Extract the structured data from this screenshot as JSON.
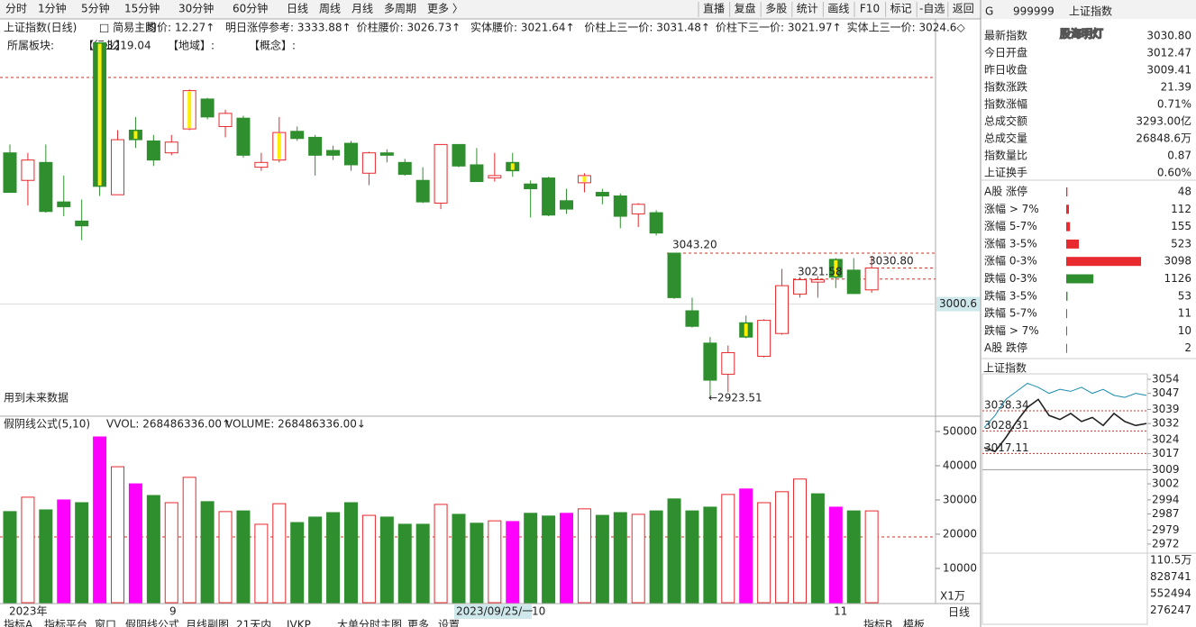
{
  "toolbar": {
    "tabs": [
      "分时",
      "1分钟",
      "5分钟",
      "15分钟",
      "30分钟",
      "60分钟",
      "日线",
      "周线",
      "月线",
      "多周期",
      "更多 〉"
    ],
    "active": 6,
    "buttons": [
      "直播",
      "复盘",
      "多股",
      "统计",
      "画线",
      "F10",
      "标记",
      "-自选",
      "返回"
    ]
  },
  "main": {
    "title": "上证指数(日线)",
    "mode": "□ 简易主图",
    "info": [
      "均价: 12.27↑",
      "明日涨停参考: 3333.88↑",
      "价柱腰价: 3026.73↑",
      "实体腰价: 3021.64↑",
      "价柱上三一价: 3031.48↑",
      "价柱下三一价: 3021.97↑",
      "实体上三一价: 3024.6◇"
    ],
    "sector": [
      "所属板块:",
      "【行业】",
      "3219.04",
      "【地域】:",
      "【概念】:"
    ],
    "note": "用到未来数据",
    "annotations": {
      "high_label": "3043.20",
      "low_label": "←2923.51",
      "mid_label": "3021.58",
      "close_label": "3030.80"
    }
  },
  "kline": {
    "up_color": "#e8292e",
    "down_color": "#2f8f2f",
    "highlight_color": "#ffee00",
    "ylim": [
      2906.9,
      3238.2
    ],
    "current_axis": 3000.6,
    "levels": [
      3190,
      3043.2,
      3030.8,
      3021.5
    ],
    "highlight": [
      5,
      7,
      10,
      15,
      28,
      32,
      41,
      46
    ],
    "open": [
      3127,
      3104,
      3119,
      3086,
      3070,
      3219,
      3092,
      3146,
      3137,
      3127,
      3147,
      3172,
      3149,
      3156,
      3115,
      3121,
      3145,
      3140,
      3129,
      3135,
      3110,
      3127,
      3119,
      3104,
      3085,
      3134,
      3117,
      3106,
      3119,
      3101,
      3106,
      3087,
      3102,
      3094,
      3091,
      3076,
      3077,
      3043.2,
      2995,
      2968,
      2942,
      2985,
      2957,
      2976,
      3009,
      3019,
      3038,
      3029,
      3012.47
    ],
    "high": [
      3134,
      3127,
      3134,
      3108,
      3088,
      3219.04,
      3146,
      3157,
      3142,
      3142,
      3180,
      3173,
      3163,
      3158,
      3127,
      3157,
      3149,
      3142,
      3133,
      3137,
      3128,
      3130,
      3122,
      3115,
      3134,
      3134,
      3131,
      3127,
      3127,
      3104,
      3107,
      3097,
      3110,
      3097,
      3093,
      3085,
      3079,
      3043.2,
      3006,
      2973,
      2966,
      2991,
      2988,
      3030,
      3023,
      3024,
      3039,
      3039,
      3041
    ],
    "low": [
      3094,
      3083,
      3077,
      3074,
      3054,
      3091,
      3092,
      3131,
      3116,
      3125,
      3146,
      3155,
      3140,
      3123,
      3112,
      3119,
      3137,
      3108,
      3121,
      3112,
      3100,
      3119,
      3108,
      3085,
      3080,
      3115,
      3103,
      3103,
      3107,
      3073,
      3074,
      3076,
      3094,
      3084,
      3064,
      3065,
      3058,
      3005,
      2981,
      2923.51,
      2927,
      2972,
      2956,
      2975,
      3006,
      3006,
      3014,
      3009,
      3010
    ],
    "close": [
      3094,
      3121,
      3078,
      3082,
      3066,
      3099,
      3138,
      3138,
      3121,
      3136,
      3179,
      3157,
      3160,
      3125,
      3119,
      3144,
      3139,
      3125,
      3125,
      3117,
      3127,
      3125,
      3109,
      3086,
      3134,
      3116,
      3103,
      3108,
      3112,
      3097,
      3075,
      3080,
      3108,
      3091,
      3074,
      3084,
      3060,
      3006,
      2982,
      2937,
      2960,
      2973,
      2987,
      3016,
      3021,
      3021,
      3023,
      3009.41,
      3030.8
    ]
  },
  "volume": {
    "title": "假阴线公式(5,10)",
    "vvol": "VVOL: 268486336.00↑",
    "vol": "VOLUME: 268486336.00↓",
    "unit": "X1万",
    "ylim": [
      0,
      53400
    ],
    "yticks": [
      10000,
      20000,
      30000,
      40000,
      50000
    ],
    "ma_line": 19200,
    "values": [
      26600,
      30800,
      27100,
      30000,
      29200,
      48400,
      39700,
      34700,
      31300,
      29200,
      36600,
      29500,
      26600,
      26800,
      22900,
      28900,
      23400,
      25000,
      26300,
      29200,
      25500,
      25000,
      22900,
      22900,
      28700,
      25800,
      23200,
      23900,
      23700,
      26100,
      25300,
      26100,
      27400,
      25500,
      26300,
      25800,
      26800,
      30300,
      26800,
      27900,
      31600,
      33200,
      29200,
      32400,
      36100,
      31800,
      27900,
      26800,
      26800
    ],
    "colors": [
      "#2f8f2f",
      "#e8292e",
      "#2f8f2f",
      "#ff00ff",
      "#2f8f2f",
      "#ff00ff",
      "#e8292e",
      "#ff00ff",
      "#2f8f2f",
      "#e8292e",
      "#e8292e",
      "#2f8f2f",
      "#e8292e",
      "#2f8f2f",
      "#e8292e",
      "#e8292e",
      "#2f8f2f",
      "#2f8f2f",
      "#2f8f2f",
      "#2f8f2f",
      "#e8292e",
      "#2f8f2f",
      "#2f8f2f",
      "#2f8f2f",
      "#e8292e",
      "#2f8f2f",
      "#2f8f2f",
      "#e8292e",
      "#ff00ff",
      "#2f8f2f",
      "#2f8f2f",
      "#ff00ff",
      "#e8292e",
      "#2f8f2f",
      "#2f8f2f",
      "#e8292e",
      "#2f8f2f",
      "#2f8f2f",
      "#2f8f2f",
      "#2f8f2f",
      "#e8292e",
      "#ff00ff",
      "#e8292e",
      "#e8292e",
      "#e8292e",
      "#2f8f2f",
      "#ff00ff",
      "#2f8f2f",
      "#e8292e"
    ]
  },
  "x_axis": {
    "labels": [
      "2023年",
      "9",
      "10",
      "11"
    ],
    "cursor_date": "2023/09/25/一"
  },
  "bottom_tabs": [
    "指标A",
    "指标平台",
    "窗口",
    "假阴线公式",
    "月线副图",
    "21天内",
    "JVKP",
    "大单分时主图",
    "更多",
    "设置"
  ],
  "bottom_right": [
    "指标B",
    "模板",
    "日线"
  ],
  "side": {
    "flag": "G",
    "code": "999999",
    "name": "上证指数",
    "watermark": "股海明灯",
    "quote": [
      {
        "label": "最新指数",
        "value": "3030.80",
        "color": "#e8292e"
      },
      {
        "label": "今日开盘",
        "value": "3012.47",
        "color": "#e8292e"
      },
      {
        "label": "昨日收盘",
        "value": "3009.41",
        "color": "#222"
      },
      {
        "label": "指数涨跌",
        "value": "21.39",
        "color": "#e8292e"
      },
      {
        "label": "指数涨幅",
        "value": "0.71%",
        "color": "#e8292e"
      },
      {
        "label": "总成交额",
        "value": "3293.00亿",
        "color": "#222"
      },
      {
        "label": "总成交量",
        "value": "26848.6万",
        "color": "#222"
      },
      {
        "label": "指数量比",
        "value": "0.87",
        "color": "#e8292e"
      },
      {
        "label": "上证换手",
        "value": "0.60%",
        "color": "#222"
      }
    ],
    "dist": [
      {
        "label": "A股 涨停",
        "value": 48,
        "color": "#e8292e"
      },
      {
        "label": "涨幅 > 7%",
        "value": 112,
        "color": "#e8292e"
      },
      {
        "label": "涨幅 5-7%",
        "value": 155,
        "color": "#e8292e"
      },
      {
        "label": "涨幅 3-5%",
        "value": 523,
        "color": "#e8292e"
      },
      {
        "label": "涨幅 0-3%",
        "value": 3098,
        "color": "#e8292e"
      },
      {
        "label": "跌幅 0-3%",
        "value": 1126,
        "color": "#2f8f2f"
      },
      {
        "label": "跌幅 3-5%",
        "value": 53,
        "color": "#2f8f2f"
      },
      {
        "label": "跌幅 5-7%",
        "value": 11,
        "color": "#2f8f2f"
      },
      {
        "label": "跌幅 > 7%",
        "value": 10,
        "color": "#2f8f2f"
      },
      {
        "label": "A股 跌停",
        "value": 2,
        "color": "#2f8f2f"
      }
    ],
    "mini": {
      "title": "上证指数",
      "ylim": [
        2968.4,
        3056.7
      ],
      "base": 3009,
      "yticks": [
        3054,
        3047,
        3039,
        3032,
        3024,
        3017,
        3009,
        3002,
        2994,
        2987,
        2979,
        2972
      ],
      "marks": [
        {
          "value": 3038.34,
          "label": "3038.34"
        },
        {
          "value": 3028.31,
          "label": "3028.31"
        },
        {
          "value": 3017.11,
          "label": "3017.11"
        }
      ],
      "price": [
        3020,
        3018,
        3025,
        3033,
        3040,
        3044,
        3036,
        3034,
        3037,
        3033,
        3035,
        3031,
        3037,
        3033,
        3031,
        3032
      ],
      "avg": [
        3030,
        3036,
        3044,
        3048,
        3052,
        3050,
        3047,
        3049,
        3048,
        3050,
        3047,
        3049,
        3046,
        3045,
        3047,
        3046
      ],
      "vol_labels": [
        "110.5万",
        "828741",
        "552494",
        "276247"
      ]
    }
  }
}
